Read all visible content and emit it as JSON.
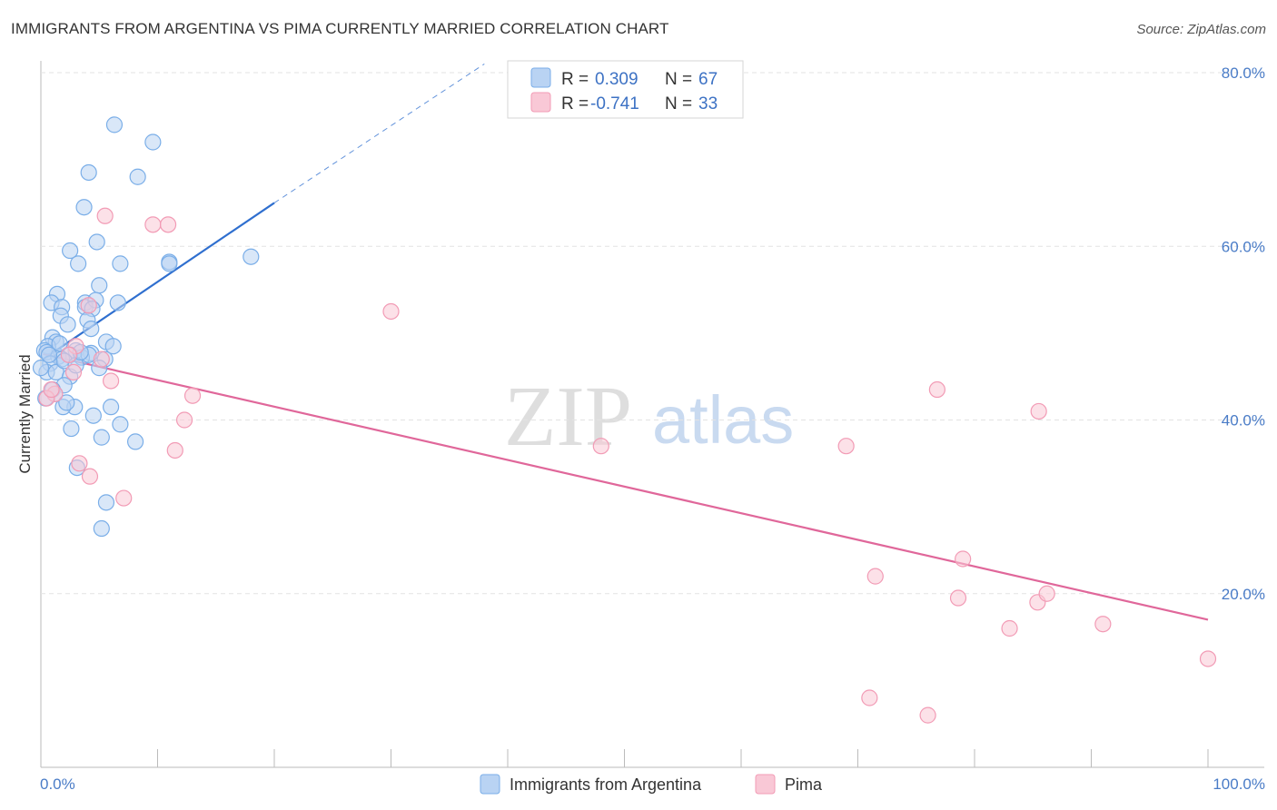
{
  "title": "IMMIGRANTS FROM ARGENTINA VS PIMA CURRENTLY MARRIED CORRELATION CHART",
  "source": "Source: ZipAtlas.com",
  "watermark": {
    "zip": "ZIP",
    "atlas": "atlas"
  },
  "chart_data": {
    "type": "scatter",
    "xlabel": "",
    "ylabel": "Currently Married",
    "xlim": [
      0,
      100
    ],
    "ylim": [
      0,
      80
    ],
    "x_tick_labels": [
      "0.0%",
      "100.0%"
    ],
    "y_ticks": [
      20,
      40,
      60,
      80
    ],
    "y_tick_labels": [
      "20.0%",
      "40.0%",
      "60.0%",
      "80.0%"
    ],
    "grid": true,
    "legend_position": "top-center",
    "series": [
      {
        "name": "Immigrants from Argentina",
        "color": "#7aaee8",
        "fill": "#b9d3f3",
        "line_color": "#2f6fcf",
        "R_label": "R =",
        "R": "0.309",
        "N_label": "N =",
        "N": "67",
        "trend": {
          "x0": 0.2,
          "y0": 47.0,
          "x1": 20.0,
          "y1": 65.0,
          "dash_x1": 38.0,
          "dash_y1": 81.0
        },
        "points": [
          [
            6.3,
            74.0
          ],
          [
            9.6,
            72.0
          ],
          [
            4.1,
            68.5
          ],
          [
            8.3,
            68.0
          ],
          [
            3.7,
            64.5
          ],
          [
            4.8,
            60.5
          ],
          [
            2.5,
            59.5
          ],
          [
            3.2,
            58.0
          ],
          [
            6.8,
            58.0
          ],
          [
            11.0,
            58.2
          ],
          [
            11.0,
            58.0
          ],
          [
            18.0,
            58.8
          ],
          [
            5.0,
            55.5
          ],
          [
            1.4,
            54.5
          ],
          [
            0.9,
            53.5
          ],
          [
            1.8,
            53.0
          ],
          [
            3.8,
            53.5
          ],
          [
            3.8,
            53.0
          ],
          [
            4.7,
            53.8
          ],
          [
            6.6,
            53.5
          ],
          [
            4.4,
            52.8
          ],
          [
            1.7,
            52.0
          ],
          [
            4.0,
            51.5
          ],
          [
            2.3,
            51.0
          ],
          [
            4.3,
            50.5
          ],
          [
            1.0,
            49.5
          ],
          [
            1.3,
            49.0
          ],
          [
            5.6,
            49.0
          ],
          [
            0.6,
            48.5
          ],
          [
            0.3,
            48.0
          ],
          [
            0.5,
            47.8
          ],
          [
            3.0,
            48.0
          ],
          [
            4.3,
            47.7
          ],
          [
            2.5,
            47.5
          ],
          [
            1.5,
            47.3
          ],
          [
            3.5,
            47.2
          ],
          [
            1.8,
            47.0
          ],
          [
            4.1,
            47.5
          ],
          [
            5.5,
            47.0
          ],
          [
            0.8,
            46.5
          ],
          [
            5.0,
            46.0
          ],
          [
            0.5,
            45.5
          ],
          [
            1.3,
            45.5
          ],
          [
            2.5,
            45.0
          ],
          [
            2.0,
            44.0
          ],
          [
            1.0,
            43.5
          ],
          [
            2.9,
            41.5
          ],
          [
            1.9,
            41.5
          ],
          [
            6.0,
            41.5
          ],
          [
            4.5,
            40.5
          ],
          [
            6.8,
            39.5
          ],
          [
            2.6,
            39.0
          ],
          [
            5.2,
            38.0
          ],
          [
            8.1,
            37.5
          ],
          [
            3.1,
            34.5
          ],
          [
            5.6,
            30.5
          ],
          [
            5.2,
            27.5
          ],
          [
            0.0,
            46.0
          ],
          [
            0.4,
            42.5
          ],
          [
            1.2,
            43.0
          ],
          [
            2.0,
            46.8
          ],
          [
            3.0,
            46.3
          ],
          [
            6.2,
            48.5
          ],
          [
            2.2,
            42.0
          ],
          [
            0.7,
            47.5
          ],
          [
            1.6,
            48.8
          ],
          [
            3.4,
            47.8
          ]
        ]
      },
      {
        "name": "Pima",
        "color": "#f29bb5",
        "fill": "#f9c8d6",
        "line_color": "#e0679a",
        "R_label": "R =",
        "R": "-0.741",
        "N_label": "N =",
        "N": "33",
        "trend": {
          "x0": 0.2,
          "y0": 47.6,
          "x1": 100.0,
          "y1": 17.0
        },
        "points": [
          [
            5.5,
            63.5
          ],
          [
            9.6,
            62.5
          ],
          [
            10.9,
            62.5
          ],
          [
            30.0,
            52.5
          ],
          [
            4.1,
            53.2
          ],
          [
            3.0,
            48.5
          ],
          [
            2.4,
            47.5
          ],
          [
            5.2,
            47.0
          ],
          [
            2.8,
            45.5
          ],
          [
            6.0,
            44.5
          ],
          [
            1.2,
            43.0
          ],
          [
            0.5,
            42.5
          ],
          [
            13.0,
            42.8
          ],
          [
            12.3,
            40.0
          ],
          [
            11.5,
            36.5
          ],
          [
            3.3,
            35.0
          ],
          [
            4.2,
            33.5
          ],
          [
            7.1,
            31.0
          ],
          [
            48.0,
            37.0
          ],
          [
            69.0,
            37.0
          ],
          [
            76.8,
            43.5
          ],
          [
            85.5,
            41.0
          ],
          [
            71.5,
            22.0
          ],
          [
            79.0,
            24.0
          ],
          [
            78.6,
            19.5
          ],
          [
            85.4,
            19.0
          ],
          [
            86.2,
            20.0
          ],
          [
            83.0,
            16.0
          ],
          [
            91.0,
            16.5
          ],
          [
            100.0,
            12.5
          ],
          [
            71.0,
            8.0
          ],
          [
            76.0,
            6.0
          ],
          [
            0.9,
            43.5
          ]
        ]
      }
    ]
  }
}
